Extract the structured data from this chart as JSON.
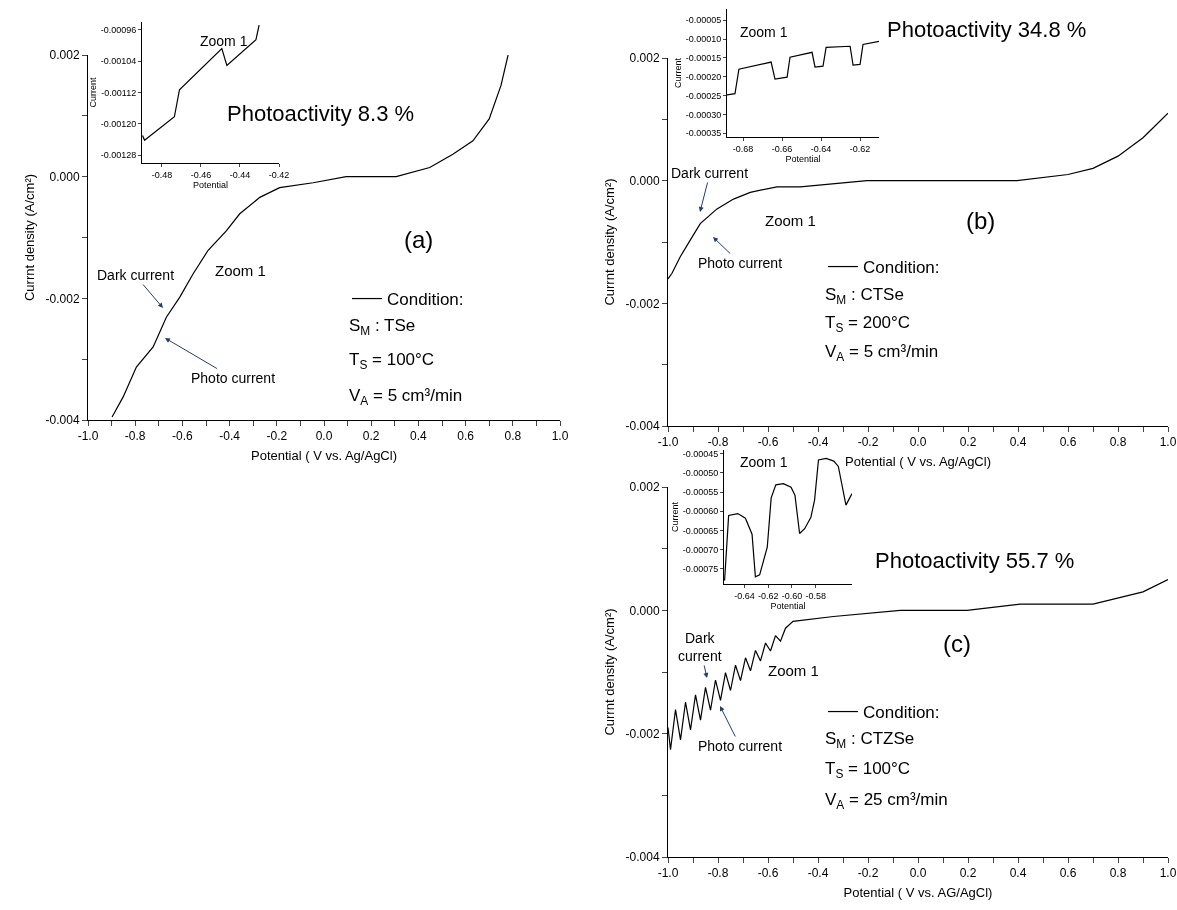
{
  "chart_data": [
    {
      "type": "line",
      "xlabel": "Potential ( V vs. Ag/AgCl)",
      "ylabel": "Currnt density (A/cm²)",
      "legend": "bottom right",
      "x": [
        -0.898,
        -0.851,
        -0.795,
        -0.724,
        -0.668,
        -0.611,
        -0.555,
        -0.491,
        -0.414,
        -0.357,
        -0.272,
        -0.188,
        -0.046,
        0.094,
        0.306,
        0.448,
        0.546,
        0.631,
        0.7,
        0.75,
        0.78
      ],
      "series": [
        {
          "name": "Condition:",
          "color": "#000000",
          "values": [
            -0.00395,
            -0.00362,
            -0.00313,
            -0.0028,
            -0.00231,
            -0.00198,
            -0.0016,
            -0.00121,
            -0.00089,
            -0.00061,
            -0.00034,
            -0.00018,
            -0.0001,
            0.0,
            0.0,
            0.00015,
            0.00037,
            0.00059,
            0.00095,
            0.0015,
            0.002
          ]
        }
      ],
      "xlim": [
        -1.0,
        1.0
      ],
      "ylim": [
        -0.004,
        0.002
      ],
      "xticks": [
        {
          "value": -1.0,
          "label": "-1.0"
        },
        {
          "value": -0.9,
          "label": null
        },
        {
          "value": -0.8,
          "label": "-0.8"
        },
        {
          "value": -0.7,
          "label": null
        },
        {
          "value": -0.6,
          "label": "-0.6"
        },
        {
          "value": -0.5,
          "label": null
        },
        {
          "value": -0.4,
          "label": "-0.4"
        },
        {
          "value": -0.3,
          "label": null
        },
        {
          "value": -0.2,
          "label": "-0.2"
        },
        {
          "value": -0.1,
          "label": null
        },
        {
          "value": 0,
          "label": "0.0"
        },
        {
          "value": 0.1,
          "label": null
        },
        {
          "value": 0.2,
          "label": "0.2"
        },
        {
          "value": 0.3,
          "label": null
        },
        {
          "value": 0.4,
          "label": "0.4"
        },
        {
          "value": 0.5,
          "label": null
        },
        {
          "value": 0.6,
          "label": "0.6"
        },
        {
          "value": 0.7,
          "label": null
        },
        {
          "value": 0.8,
          "label": "0.8"
        },
        {
          "value": 0.9,
          "label": null
        },
        {
          "value": 1.0,
          "label": "1.0"
        }
      ],
      "yticks": [
        {
          "value": -0.004,
          "label": "-0.004"
        },
        {
          "value": -0.003,
          "label": null
        },
        {
          "value": -0.002,
          "label": "-0.002"
        },
        {
          "value": -0.001,
          "label": null
        },
        {
          "value": 0,
          "label": "0.000"
        },
        {
          "value": 0.001,
          "label": null
        },
        {
          "value": 0.002,
          "label": "0.002"
        }
      ],
      "annotations": [
        "Photoactivity 8.3 %",
        "(a)",
        "Zoom 1",
        "Dark current",
        "Photo current",
        "S$_{M}$ : TSe",
        "T$_{S}$ = 100°C",
        "V$_{A}$ = 5 cm³/min"
      ]
    },
    {
      "type": "line",
      "title": "Zoom 1",
      "xlabel": "Potential",
      "ylabel": "Current",
      "x": [
        -0.4899,
        -0.4889,
        -0.4736,
        -0.471,
        -0.4493,
        -0.4467,
        -0.4318,
        -0.4302
      ],
      "series": [
        {
          "color": "#000000",
          "values": [
            -0.00123,
            -0.001242,
            -0.001182,
            -0.001113,
            -0.001008,
            -0.001051,
            -0.000985,
            -0.000948
          ]
        }
      ],
      "xlim": [
        -0.4902,
        -0.42
      ],
      "ylim": [
        -0.0013,
        -0.00094
      ],
      "xticks": [
        {
          "value": -0.48,
          "label": "-0.48"
        },
        {
          "value": -0.46,
          "label": "-0.46"
        },
        {
          "value": -0.44,
          "label": "-0.44"
        },
        {
          "value": -0.42,
          "label": "-0.42"
        }
      ],
      "yticks": [
        {
          "value": -0.00128,
          "label": "-0.00128"
        },
        {
          "value": -0.0012,
          "label": "-0.00120"
        },
        {
          "value": -0.00112,
          "label": "-0.00112"
        },
        {
          "value": -0.00104,
          "label": "-0.00104"
        },
        {
          "value": -0.00096,
          "label": "-0.00096"
        }
      ]
    },
    {
      "type": "line",
      "xlabel": "Potential ( V vs. Ag/AgCl)",
      "ylabel": "Currnt density (A/cm²)",
      "legend": "bottom",
      "x": [
        -1.0,
        -0.984,
        -0.951,
        -0.911,
        -0.871,
        -0.804,
        -0.738,
        -0.671,
        -0.564,
        -0.471,
        -0.204,
        0.062,
        0.396,
        0.6,
        0.7,
        0.8,
        0.9,
        0.95,
        1.0
      ],
      "series": [
        {
          "name": "Condition:",
          "color": "#000000",
          "values": [
            -0.0016,
            -0.00151,
            -0.00124,
            -0.00097,
            -0.0007,
            -0.00046,
            -0.0003,
            -0.00019,
            -0.0001,
            -0.0001,
            0.0,
            0.0,
            0.0,
            0.0001,
            0.0002,
            0.0004,
            0.0007,
            0.0009,
            0.0011
          ]
        }
      ],
      "xlim": [
        -1.0,
        1.0
      ],
      "ylim": [
        -0.004,
        0.002
      ],
      "xticks": [
        {
          "value": -1.0,
          "label": "-1.0"
        },
        {
          "value": -0.9,
          "label": null
        },
        {
          "value": -0.8,
          "label": "-0.8"
        },
        {
          "value": -0.7,
          "label": null
        },
        {
          "value": -0.6,
          "label": "-0.6"
        },
        {
          "value": -0.5,
          "label": null
        },
        {
          "value": -0.4,
          "label": "-0.4"
        },
        {
          "value": -0.3,
          "label": null
        },
        {
          "value": -0.2,
          "label": "-0.2"
        },
        {
          "value": -0.1,
          "label": null
        },
        {
          "value": 0,
          "label": "0.0"
        },
        {
          "value": 0.1,
          "label": null
        },
        {
          "value": 0.2,
          "label": "0.2"
        },
        {
          "value": 0.3,
          "label": null
        },
        {
          "value": 0.4,
          "label": "0.4"
        },
        {
          "value": 0.5,
          "label": null
        },
        {
          "value": 0.6,
          "label": "0.6"
        },
        {
          "value": 0.7,
          "label": null
        },
        {
          "value": 0.8,
          "label": "0.8"
        },
        {
          "value": 0.9,
          "label": null
        },
        {
          "value": 1.0,
          "label": "1.0"
        }
      ],
      "yticks": [
        {
          "value": -0.004,
          "label": "-0.004"
        },
        {
          "value": -0.003,
          "label": null
        },
        {
          "value": -0.002,
          "label": "-0.002"
        },
        {
          "value": -0.001,
          "label": null
        },
        {
          "value": 0,
          "label": "0.000"
        },
        {
          "value": 0.001,
          "label": null
        },
        {
          "value": 0.002,
          "label": "0.002"
        }
      ],
      "annotations": [
        "Photoactivity 34.8 %",
        "Dark current",
        "Photo current",
        "Zoom 1",
        "(b)",
        "S$_{M}$ : CTSe",
        "T$_{S}$ = 200°C",
        "V$_{A}$ = 5 cm³/min"
      ]
    },
    {
      "type": "line",
      "title": "Zoom 1",
      "xlabel": "Potential",
      "ylabel": "Current",
      "x": [
        -0.6882,
        -0.6841,
        -0.6821,
        -0.6656,
        -0.6636,
        -0.6574,
        -0.6559,
        -0.6446,
        -0.6431,
        -0.639,
        -0.6374,
        -0.6251,
        -0.6236,
        -0.62,
        -0.6185,
        -0.6103
      ],
      "series": [
        {
          "color": "#000000",
          "values": [
            -0.000248,
            -0.000245,
            -0.00018,
            -0.000161,
            -0.000206,
            -0.000201,
            -0.000148,
            -0.000135,
            -0.000174,
            -0.000172,
            -0.000122,
            -0.000119,
            -0.000169,
            -0.000167,
            -0.000114,
            -0.000106
          ]
        }
      ],
      "xlim": [
        -0.6882,
        -0.6103
      ],
      "ylim": [
        -0.00036,
        -2e-05
      ],
      "xticks": [
        {
          "value": -0.68,
          "label": "-0.68"
        },
        {
          "value": -0.66,
          "label": "-0.66"
        },
        {
          "value": -0.64,
          "label": "-0.64"
        },
        {
          "value": -0.62,
          "label": "-0.62"
        }
      ],
      "yticks": [
        {
          "value": -0.00035,
          "label": "-0.00035"
        },
        {
          "value": -0.0003,
          "label": "-0.00030"
        },
        {
          "value": -0.00025,
          "label": "-0.00025"
        },
        {
          "value": -0.0002,
          "label": "-0.00020"
        },
        {
          "value": -0.00015,
          "label": "-0.00015"
        },
        {
          "value": -0.0001,
          "label": "-0.00010"
        },
        {
          "value": -5e-05,
          "label": "-0.00005"
        }
      ]
    },
    {
      "type": "line",
      "xlabel": "Potential ( V vs. AG/AgCl)",
      "ylabel": "Currnt density (A/cm²)",
      "legend": "bottom",
      "x": [
        -1.0,
        -0.99,
        -0.97,
        -0.95,
        -0.93,
        -0.91,
        -0.89,
        -0.87,
        -0.85,
        -0.83,
        -0.81,
        -0.79,
        -0.77,
        -0.75,
        -0.73,
        -0.71,
        -0.69,
        -0.67,
        -0.65,
        -0.63,
        -0.61,
        -0.59,
        -0.57,
        -0.55,
        -0.53,
        -0.5,
        -0.338,
        -0.071,
        0.196,
        0.409,
        0.7,
        0.9,
        1.0
      ],
      "series": [
        {
          "name": "Condition:",
          "color": "#000000",
          "values": [
            -0.0019,
            -0.00226,
            -0.00161,
            -0.0021,
            -0.00149,
            -0.00194,
            -0.00137,
            -0.00178,
            -0.00125,
            -0.00162,
            -0.00113,
            -0.00146,
            -0.00101,
            -0.0013,
            -0.00089,
            -0.00114,
            -0.00077,
            -0.00098,
            -0.00065,
            -0.00082,
            -0.00053,
            -0.00066,
            -0.00041,
            -0.0005,
            -0.00029,
            -0.00018,
            -0.0001,
            0.0,
            0.0,
            0.0001,
            0.0001,
            0.0003,
            0.0005
          ]
        }
      ],
      "xlim": [
        -1.0,
        1.0
      ],
      "ylim": [
        -0.004,
        0.002
      ],
      "xticks": [
        {
          "value": -1.0,
          "label": "-1.0"
        },
        {
          "value": -0.9,
          "label": null
        },
        {
          "value": -0.8,
          "label": "-0.8"
        },
        {
          "value": -0.7,
          "label": null
        },
        {
          "value": -0.6,
          "label": "-0.6"
        },
        {
          "value": -0.5,
          "label": null
        },
        {
          "value": -0.4,
          "label": "-0.4"
        },
        {
          "value": -0.3,
          "label": null
        },
        {
          "value": -0.2,
          "label": "-0.2"
        },
        {
          "value": -0.1,
          "label": null
        },
        {
          "value": 0,
          "label": "0.0"
        },
        {
          "value": 0.1,
          "label": null
        },
        {
          "value": 0.2,
          "label": "0.2"
        },
        {
          "value": 0.3,
          "label": null
        },
        {
          "value": 0.4,
          "label": "0.4"
        },
        {
          "value": 0.5,
          "label": null
        },
        {
          "value": 0.6,
          "label": "0.6"
        },
        {
          "value": 0.7,
          "label": null
        },
        {
          "value": 0.8,
          "label": "0.8"
        },
        {
          "value": 0.9,
          "label": null
        },
        {
          "value": 1.0,
          "label": "1.0"
        }
      ],
      "yticks": [
        {
          "value": -0.004,
          "label": "-0.004"
        },
        {
          "value": -0.003,
          "label": null
        },
        {
          "value": -0.002,
          "label": "-0.002"
        },
        {
          "value": -0.001,
          "label": null
        },
        {
          "value": 0,
          "label": "0.000"
        },
        {
          "value": 0.001,
          "label": null
        },
        {
          "value": 0.002,
          "label": "0.002"
        }
      ],
      "annotations": [
        "Photoactivity 55.7 %",
        "Dark\ncurrent",
        "Photo current",
        "Zoom 1",
        "(c)",
        "S$_{M}$ : CTZSe",
        "T$_{S}$ = 100°C",
        "V$_{A}$ = 25 cm³/min"
      ]
    },
    {
      "type": "line",
      "title": "Zoom 1",
      "xlabel": "Potential",
      "ylabel": "Current",
      "x": [
        -0.6567,
        -0.6533,
        -0.6456,
        -0.6392,
        -0.6336,
        -0.6308,
        -0.6272,
        -0.6208,
        -0.6175,
        -0.6136,
        -0.6072,
        -0.6008,
        -0.5975,
        -0.5936,
        -0.5892,
        -0.5841,
        -0.581,
        -0.5777,
        -0.5713,
        -0.5648,
        -0.561,
        -0.5546,
        -0.5495
      ],
      "series": [
        {
          "color": "#000000",
          "values": [
            -0.000781,
            -0.000611,
            -0.000606,
            -0.000618,
            -0.00066,
            -0.000771,
            -0.000766,
            -0.000694,
            -0.000565,
            -0.000531,
            -0.000528,
            -0.000537,
            -0.000558,
            -0.000658,
            -0.000645,
            -0.000616,
            -0.000571,
            -0.000466,
            -0.000462,
            -0.000469,
            -0.000483,
            -0.000584,
            -0.000554
          ]
        }
      ],
      "xlim": [
        -0.6572,
        -0.5495
      ],
      "ylim": [
        -0.00079,
        -0.00044
      ],
      "xticks": [
        {
          "value": -0.64,
          "label": "-0.64"
        },
        {
          "value": -0.62,
          "label": "-0.62"
        },
        {
          "value": -0.6,
          "label": "-0.60"
        },
        {
          "value": -0.58,
          "label": "-0.58"
        }
      ],
      "yticks": [
        {
          "value": -0.00075,
          "label": "-0.00075"
        },
        {
          "value": -0.0007,
          "label": "-0.00070"
        },
        {
          "value": -0.00065,
          "label": "-0.00065"
        },
        {
          "value": -0.0006,
          "label": "-0.00060"
        },
        {
          "value": -0.00055,
          "label": "-0.00055"
        },
        {
          "value": -0.0005,
          "label": "-0.00050"
        },
        {
          "value": -0.00045,
          "label": "-0.00045"
        }
      ]
    }
  ]
}
